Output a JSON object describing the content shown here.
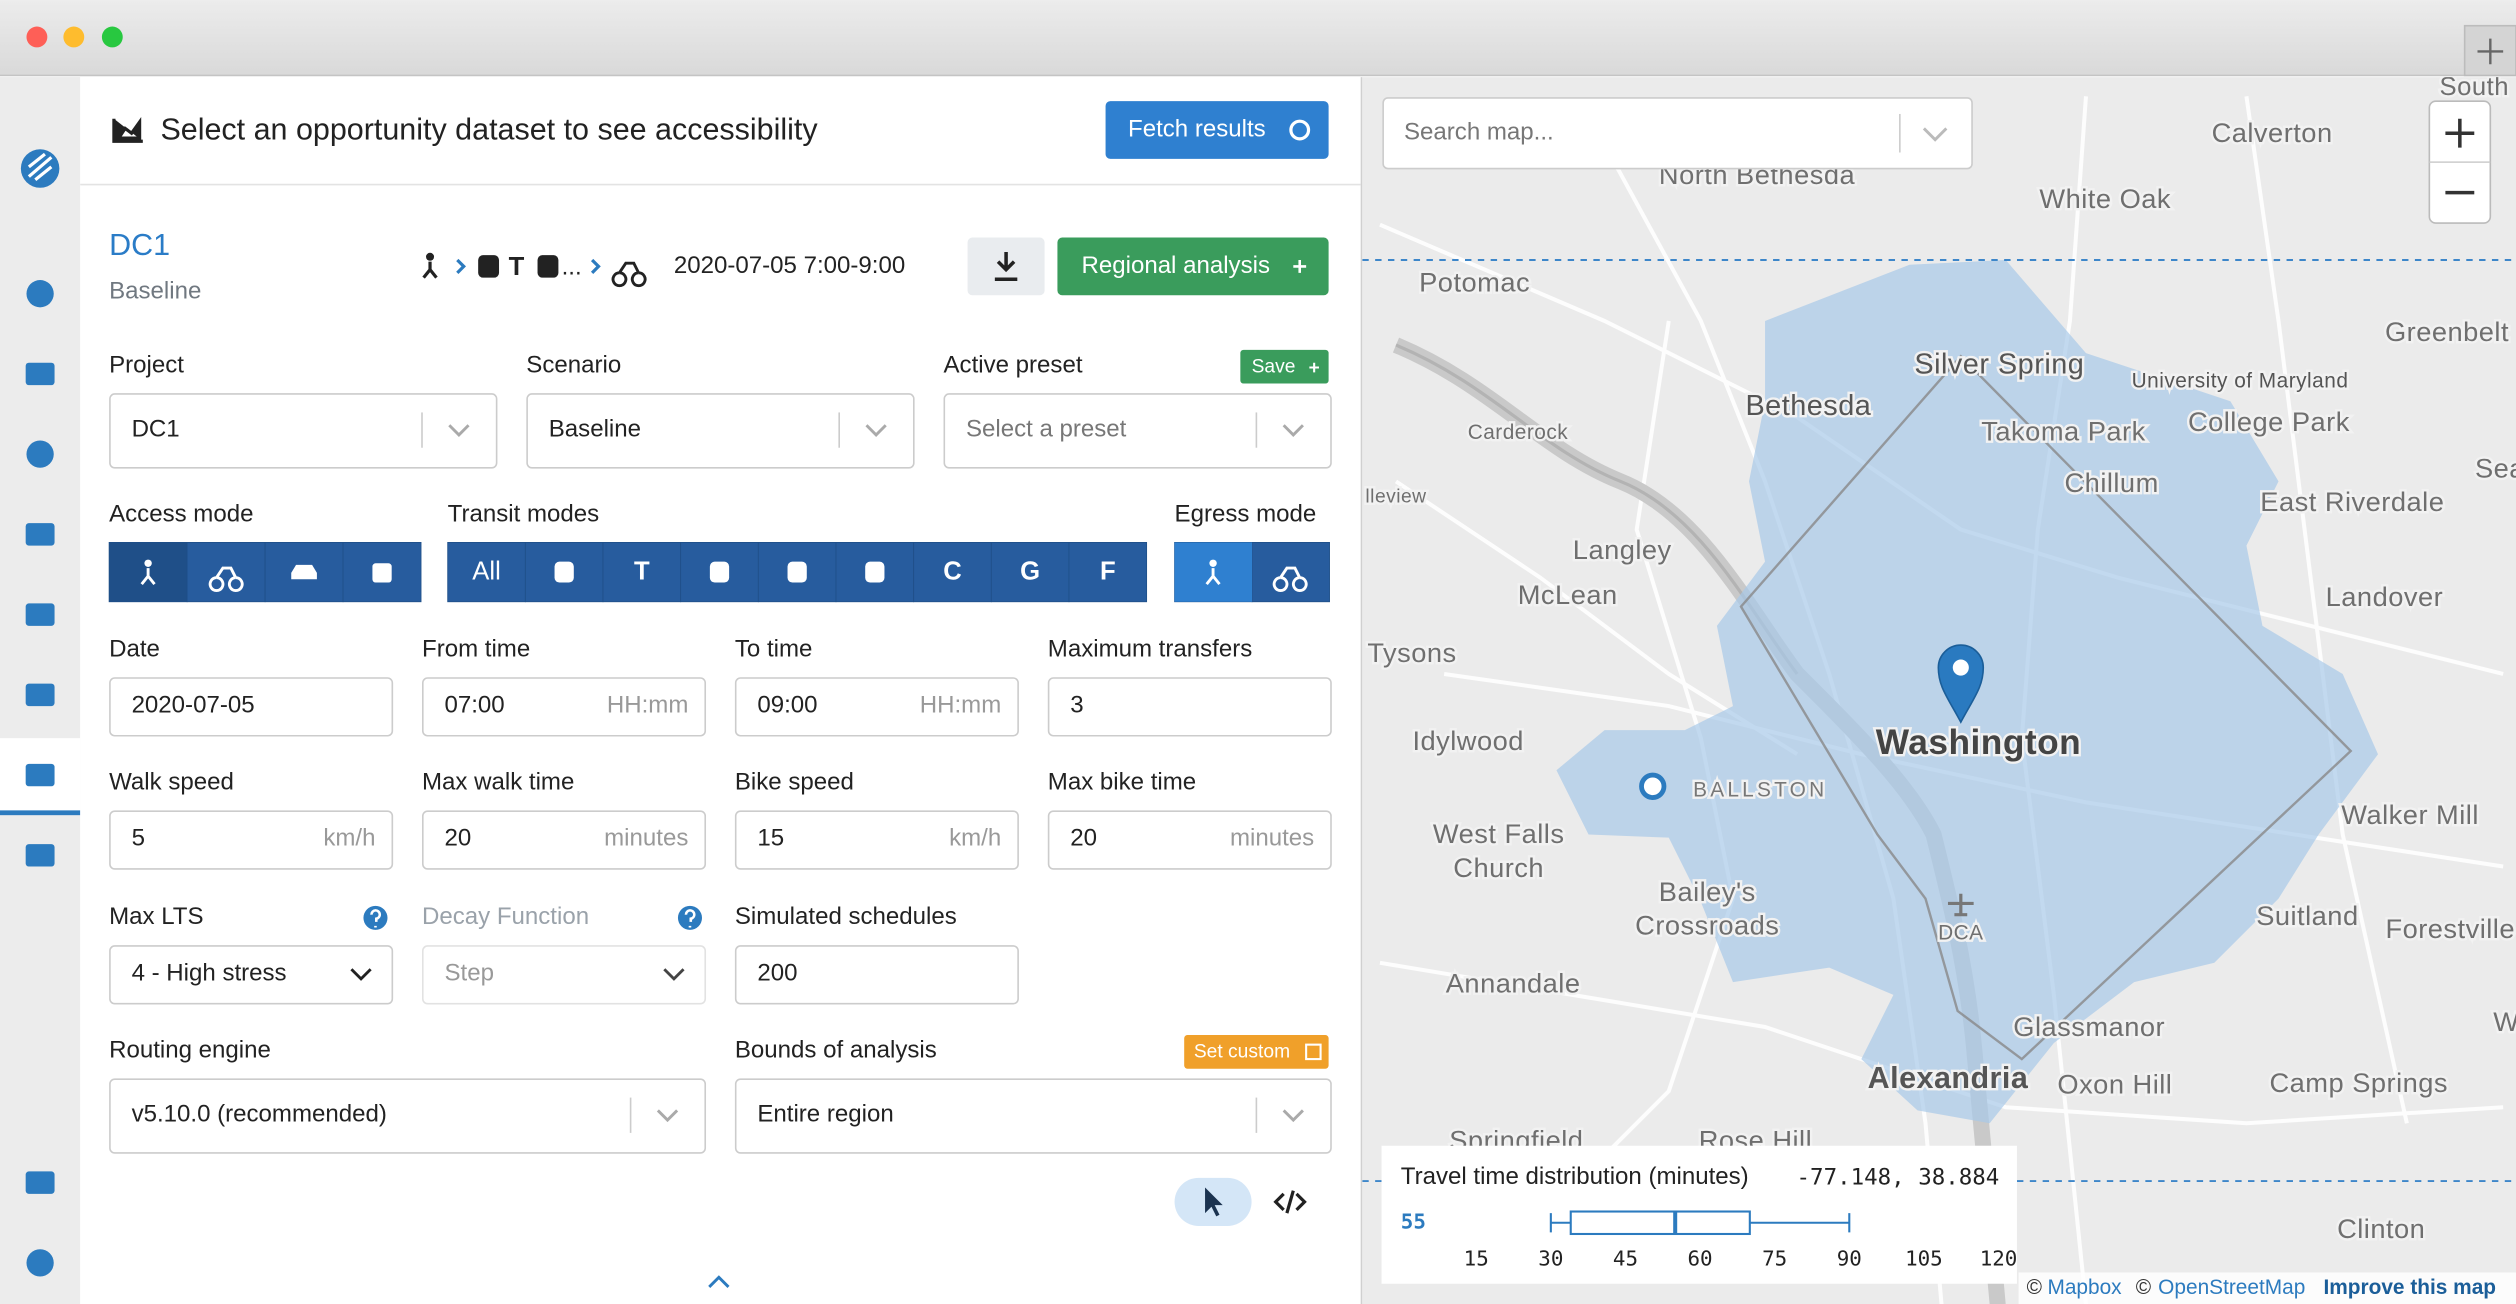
{
  "header": {
    "title": "Select an opportunity dataset to see accessibility",
    "fetch_button": "Fetch results"
  },
  "analysis": {
    "name": "DC1",
    "scenario": "Baseline",
    "mode_t": "T",
    "mode_ellipsis": "...",
    "date_time": "2020-07-05  7:00-9:00",
    "regional_button": "Regional analysis"
  },
  "form": {
    "project": {
      "label": "Project",
      "value": "DC1"
    },
    "scenario": {
      "label": "Scenario",
      "value": "Baseline"
    },
    "preset": {
      "label": "Active preset",
      "placeholder": "Select a preset",
      "save": "Save"
    },
    "access_mode": {
      "label": "Access mode"
    },
    "transit_modes": {
      "label": "Transit modes",
      "all": "All",
      "t": "T",
      "c": "C",
      "g": "G",
      "f": "F"
    },
    "egress_mode": {
      "label": "Egress mode"
    },
    "date": {
      "label": "Date",
      "value": "2020-07-05"
    },
    "from_time": {
      "label": "From time",
      "value": "07:00",
      "hint": "HH:mm"
    },
    "to_time": {
      "label": "To time",
      "value": "09:00",
      "hint": "HH:mm"
    },
    "max_transfers": {
      "label": "Maximum transfers",
      "value": "3"
    },
    "walk_speed": {
      "label": "Walk speed",
      "value": "5",
      "hint": "km/h"
    },
    "max_walk_time": {
      "label": "Max walk time",
      "value": "20",
      "hint": "minutes"
    },
    "bike_speed": {
      "label": "Bike speed",
      "value": "15",
      "hint": "km/h"
    },
    "max_bike_time": {
      "label": "Max bike time",
      "value": "20",
      "hint": "minutes"
    },
    "max_lts": {
      "label": "Max LTS",
      "value": "4 - High stress"
    },
    "decay_function": {
      "label": "Decay Function",
      "value": "Step"
    },
    "simulated_schedules": {
      "label": "Simulated schedules",
      "value": "200"
    },
    "routing_engine": {
      "label": "Routing engine",
      "value": "v5.10.0 (recommended)"
    },
    "bounds": {
      "label": "Bounds of analysis",
      "value": "Entire region",
      "set_custom": "Set custom"
    }
  },
  "map": {
    "search_placeholder": "Search map...",
    "labels": [
      "South",
      "Calverton",
      "North Bethesda",
      "White Oak",
      "Potomac",
      "Greenbelt",
      "Silver Spring",
      "University of Maryland",
      "Bethesda",
      "Takoma Park",
      "College Park",
      "Carderock",
      "Sea",
      "Chillum",
      "lleview",
      "East Riverdale",
      "Langley",
      "McLean",
      "Landover",
      "Tysons",
      "Washington",
      "Idylwood",
      "BALLSTON",
      "West Falls",
      "Church",
      "Walker Mill",
      "Bailey's",
      "Crossroads",
      "DCA",
      "Suitland",
      "Forestville",
      "Annandale",
      "Glassmanor",
      "Alexandria",
      "Oxon Hill",
      "Camp Springs",
      "Springfield",
      "Rose Hill",
      "Clinton",
      "W"
    ],
    "attribution": [
      "©",
      "Mapbox",
      "©",
      "OpenStreetMap",
      "Improve this map"
    ]
  },
  "distribution": {
    "title": "Travel time distribution (minutes)",
    "coordinates": "-77.148, 38.884",
    "median_label": "55",
    "box": {
      "min": 30,
      "q1": 34,
      "median": 55,
      "q3": 70,
      "max": 90
    },
    "xlim": [
      15,
      120
    ],
    "xticks": [
      15,
      30,
      45,
      60,
      75,
      90,
      105,
      120
    ]
  }
}
